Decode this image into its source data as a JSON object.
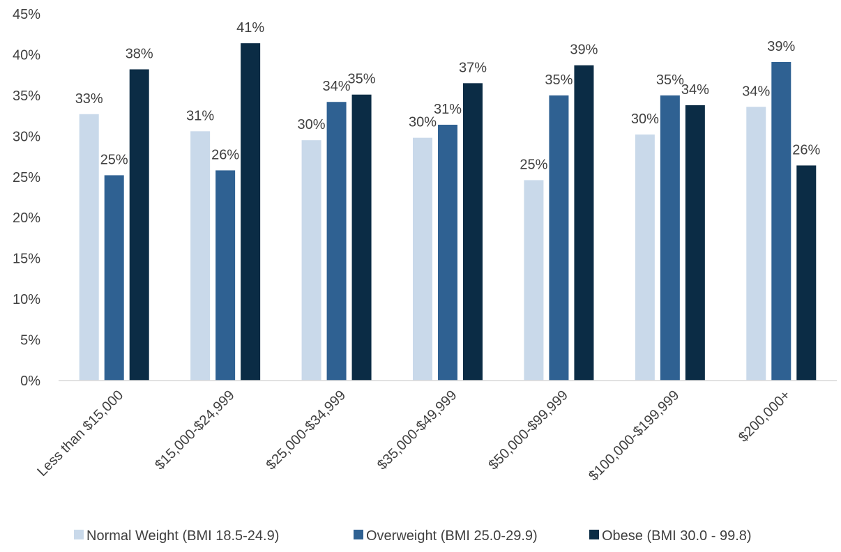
{
  "chart_data": {
    "type": "bar",
    "title": "",
    "xlabel": "",
    "ylabel": "",
    "ylim": [
      0,
      45
    ],
    "y_ticks": [
      "0%",
      "5%",
      "10%",
      "15%",
      "20%",
      "25%",
      "30%",
      "35%",
      "40%",
      "45%"
    ],
    "grid": false,
    "legend_position": "bottom",
    "categories": [
      "Less than $15,000",
      "$15,000-$24,999",
      "$25,000-$34,999",
      "$35,000-$49,999",
      "$50,000-$99,999",
      "$100,000-$199,999",
      "$200,000+"
    ],
    "series": [
      {
        "name": "Normal Weight (BMI 18.5-24.9)",
        "color": "#c9d9ea",
        "values": [
          32.7,
          30.6,
          29.5,
          29.8,
          24.6,
          30.2,
          33.6
        ],
        "labels": [
          "33%",
          "31%",
          "30%",
          "30%",
          "25%",
          "30%",
          "34%"
        ]
      },
      {
        "name": "Overweight (BMI 25.0-29.9)",
        "color": "#2f6192",
        "values": [
          25.2,
          25.8,
          34.2,
          31.4,
          35.0,
          35.0,
          39.1
        ],
        "labels": [
          "25%",
          "26%",
          "34%",
          "31%",
          "35%",
          "35%",
          "39%"
        ]
      },
      {
        "name": "Obese (BMI 30.0 - 99.8)",
        "color": "#0b2c45",
        "values": [
          38.2,
          41.4,
          35.1,
          36.5,
          38.7,
          33.8,
          26.4
        ],
        "labels": [
          "38%",
          "41%",
          "35%",
          "37%",
          "39%",
          "34%",
          "26%"
        ]
      }
    ]
  },
  "colors": {
    "axis": "#d9d9d9",
    "text": "#404040"
  }
}
